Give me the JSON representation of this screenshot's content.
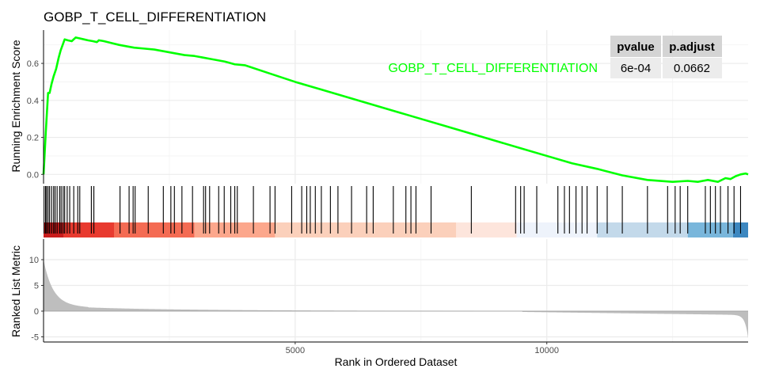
{
  "chart_data": {
    "type": "line",
    "title": "GOBP_T_CELL_DIFFERENTIATION",
    "xlabel": "Rank in Ordered Dataset",
    "xlim": [
      0,
      14000
    ],
    "x_ticks": [
      5000,
      10000
    ],
    "x_tick_labels": [
      "5000",
      "10000"
    ],
    "grid": true,
    "running_enrichment": {
      "ylabel": "Running Enrichment Score",
      "ylim": [
        -0.05,
        0.78
      ],
      "y_ticks": [
        0.0,
        0.2,
        0.4,
        0.6
      ],
      "y_tick_labels": [
        "0.0",
        "0.2",
        "0.4",
        "0.6"
      ],
      "series_name": "GOBP_T_CELL_DIFFERENTIATION",
      "series_color": "#00ff00",
      "x": [
        0,
        20,
        45,
        60,
        90,
        120,
        160,
        200,
        250,
        300,
        340,
        380,
        420,
        480,
        560,
        640,
        720,
        800,
        880,
        980,
        1060,
        1100,
        1200,
        1350,
        1500,
        1700,
        1800,
        2000,
        2200,
        2500,
        2800,
        3000,
        3300,
        3600,
        3800,
        4000,
        4500,
        5000,
        5500,
        6000,
        6500,
        7000,
        7500,
        8000,
        8500,
        9000,
        9500,
        10000,
        10500,
        11000,
        11500,
        12000,
        12500,
        12800,
        13000,
        13200,
        13400,
        13550,
        13650,
        13750,
        13850,
        13950,
        14000
      ],
      "y": [
        0.0,
        0.1,
        0.23,
        0.3,
        0.44,
        0.44,
        0.49,
        0.53,
        0.57,
        0.63,
        0.67,
        0.7,
        0.73,
        0.725,
        0.72,
        0.74,
        0.735,
        0.73,
        0.725,
        0.72,
        0.715,
        0.725,
        0.72,
        0.71,
        0.7,
        0.69,
        0.685,
        0.68,
        0.675,
        0.66,
        0.645,
        0.64,
        0.625,
        0.61,
        0.595,
        0.59,
        0.545,
        0.5,
        0.46,
        0.42,
        0.38,
        0.34,
        0.3,
        0.26,
        0.22,
        0.18,
        0.14,
        0.1,
        0.06,
        0.03,
        -0.005,
        -0.03,
        -0.04,
        -0.035,
        -0.04,
        -0.03,
        -0.04,
        -0.02,
        -0.025,
        -0.01,
        0.0,
        0.005,
        0.0
      ]
    },
    "gene_hits": [
      10,
      40,
      60,
      90,
      120,
      160,
      200,
      230,
      270,
      320,
      350,
      390,
      420,
      470,
      520,
      600,
      680,
      720,
      950,
      1000,
      1520,
      1700,
      1780,
      1820,
      2080,
      2380,
      2530,
      2600,
      2750,
      2960,
      3180,
      3220,
      3300,
      3480,
      3590,
      3720,
      3800,
      3850,
      4170,
      4500,
      4600,
      4930,
      5130,
      5230,
      5300,
      5400,
      5520,
      5700,
      5850,
      6120,
      6420,
      6550,
      6950,
      7200,
      7300,
      7400,
      7700,
      8500,
      9380,
      9480,
      9550,
      9800,
      10220,
      10350,
      10450,
      10580,
      10700,
      10800,
      11000,
      11200,
      11500,
      12000,
      12400,
      12550,
      12650,
      12800,
      13150,
      13250,
      13350,
      13450,
      13600,
      13720,
      13850
    ],
    "rank_colors": [
      "#c91d1d",
      "#e83a2f",
      "#f46b53",
      "#fca78c",
      "#fbd0bb",
      "#fde5dc",
      "#eef3fb",
      "#c3d9ea",
      "#79b6db",
      "#3c87c0"
    ],
    "rank_color_breaks": [
      0,
      400,
      1400,
      3000,
      4600,
      8200,
      9400,
      11000,
      12800,
      13700,
      14000
    ],
    "ranked_list": {
      "ylabel": "Ranked List Metric",
      "ylim": [
        -6,
        14
      ],
      "y_ticks": [
        -5,
        0,
        5,
        10
      ],
      "y_tick_labels": [
        "-5",
        "0",
        "5",
        "10"
      ],
      "fill_color": "#bebebe",
      "gap": [
        8800,
        9500
      ]
    },
    "table": {
      "headers": [
        "pvalue",
        "p.adjust"
      ],
      "rows": [
        [
          "6e-04",
          "0.0662"
        ]
      ]
    }
  }
}
